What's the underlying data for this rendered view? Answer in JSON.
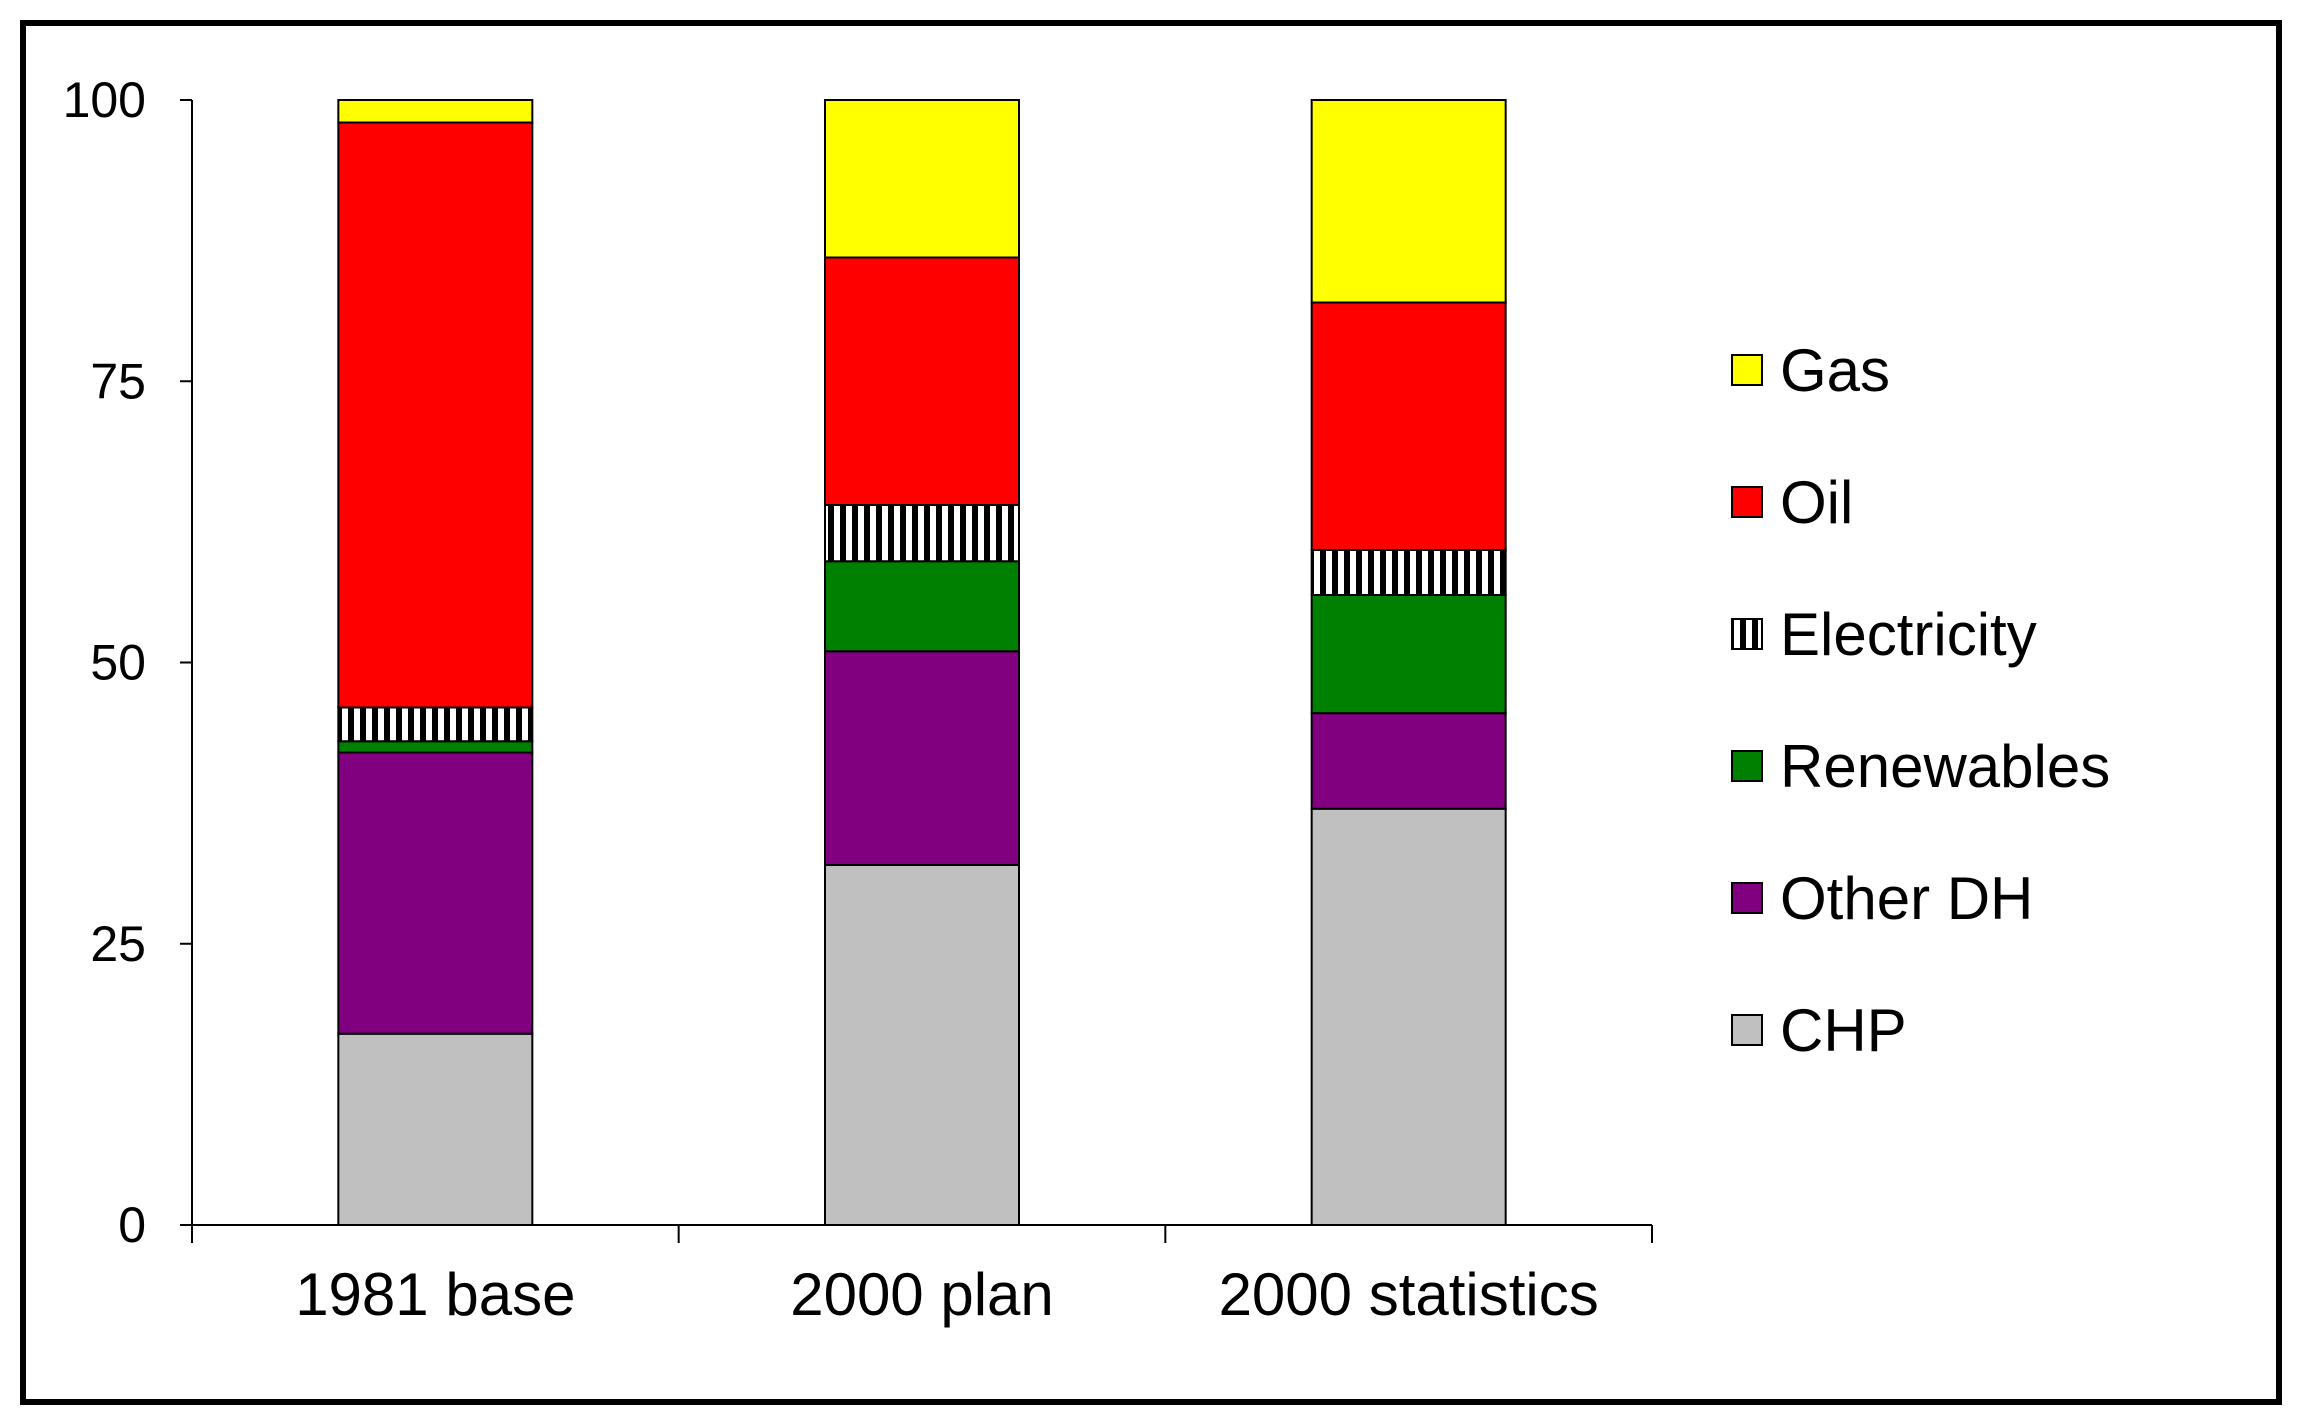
{
  "chart_data": {
    "type": "bar",
    "stacked": true,
    "categories": [
      "1981 base",
      "2000 plan",
      "2000 statistics"
    ],
    "series": [
      {
        "name": "CHP",
        "color": "#c0c0c0",
        "values": [
          17,
          32,
          37
        ]
      },
      {
        "name": "Other DH",
        "color": "#800080",
        "values": [
          25,
          19,
          8.5
        ]
      },
      {
        "name": "Renewables",
        "color": "#008000",
        "values": [
          1,
          8,
          10.5
        ]
      },
      {
        "name": "Electricity",
        "color": "hatched",
        "values": [
          3,
          5,
          4
        ]
      },
      {
        "name": "Oil",
        "color": "#ff0000",
        "values": [
          52,
          22,
          22
        ]
      },
      {
        "name": "Gas",
        "color": "#ffff00",
        "values": [
          2,
          14,
          18
        ]
      }
    ],
    "ylim": [
      0,
      100
    ],
    "yticks": [
      "0",
      "25",
      "50",
      "75",
      "100"
    ],
    "grid": false,
    "legend": "right",
    "title": "",
    "xlabel": "",
    "ylabel": ""
  }
}
